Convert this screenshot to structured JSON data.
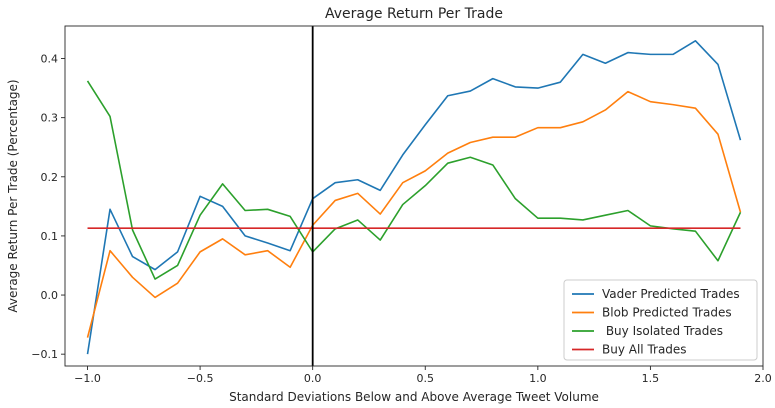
{
  "chart_data": {
    "type": "line",
    "title": "Average Return Per Trade",
    "xlabel": "Standard Deviations Below and Above Average Tweet Volume",
    "ylabel": "Average Return Per Trade (Percentage)",
    "xlim": [
      -1.1,
      2.0
    ],
    "ylim": [
      -0.12,
      0.455
    ],
    "xticks": [
      -1.0,
      -0.5,
      0.0,
      0.5,
      1.0,
      1.5,
      2.0
    ],
    "xtick_labels": [
      "−1.0",
      "−0.5",
      "0.0",
      "0.5",
      "1.0",
      "1.5",
      "2.0"
    ],
    "yticks": [
      -0.1,
      0.0,
      0.1,
      0.2,
      0.3,
      0.4
    ],
    "ytick_labels": [
      "−0.1",
      "0.0",
      "0.1",
      "0.2",
      "0.3",
      "0.4"
    ],
    "grid": false,
    "legend_position": "bottom-right",
    "vline_x": 0.0,
    "vline_color": "#000000",
    "x": [
      -1.0,
      -0.9,
      -0.8,
      -0.7,
      -0.6,
      -0.5,
      -0.4,
      -0.3,
      -0.2,
      -0.1,
      0.0,
      0.1,
      0.2,
      0.3,
      0.4,
      0.5,
      0.6,
      0.7,
      0.8,
      0.9,
      1.0,
      1.1,
      1.2,
      1.3,
      1.4,
      1.5,
      1.6,
      1.7,
      1.8,
      1.9
    ],
    "series": [
      {
        "name": "Vader Predicted Trades",
        "color": "#1f77b4",
        "values": [
          -0.1,
          0.145,
          0.065,
          0.043,
          0.073,
          0.167,
          0.15,
          0.1,
          0.088,
          0.075,
          0.163,
          0.19,
          0.195,
          0.177,
          0.237,
          0.288,
          0.337,
          0.345,
          0.366,
          0.352,
          0.35,
          0.36,
          0.407,
          0.392,
          0.41,
          0.407,
          0.407,
          0.43,
          0.39,
          0.262
        ]
      },
      {
        "name": "Blob Predicted Trades",
        "color": "#ff7f0e",
        "values": [
          -0.072,
          0.075,
          0.03,
          -0.004,
          0.02,
          0.073,
          0.095,
          0.068,
          0.075,
          0.047,
          0.118,
          0.16,
          0.172,
          0.137,
          0.19,
          0.21,
          0.24,
          0.258,
          0.267,
          0.267,
          0.283,
          0.283,
          0.293,
          0.313,
          0.344,
          0.327,
          0.322,
          0.316,
          0.272,
          0.14
        ]
      },
      {
        "name": " Buy Isolated Trades",
        "color": "#2ca02c",
        "values": [
          0.362,
          0.302,
          0.11,
          0.027,
          0.05,
          0.135,
          0.188,
          0.143,
          0.145,
          0.133,
          0.073,
          0.112,
          0.127,
          0.093,
          0.153,
          0.185,
          0.223,
          0.233,
          0.22,
          0.163,
          0.13,
          0.13,
          0.127,
          0.135,
          0.143,
          0.117,
          0.112,
          0.108,
          0.058,
          0.14
        ]
      },
      {
        "name": "Buy All Trades",
        "color": "#d62728",
        "values": [
          0.113,
          0.113,
          0.113,
          0.113,
          0.113,
          0.113,
          0.113,
          0.113,
          0.113,
          0.113,
          0.113,
          0.113,
          0.113,
          0.113,
          0.113,
          0.113,
          0.113,
          0.113,
          0.113,
          0.113,
          0.113,
          0.113,
          0.113,
          0.113,
          0.113,
          0.113,
          0.113,
          0.113,
          0.113,
          0.113
        ]
      }
    ]
  }
}
